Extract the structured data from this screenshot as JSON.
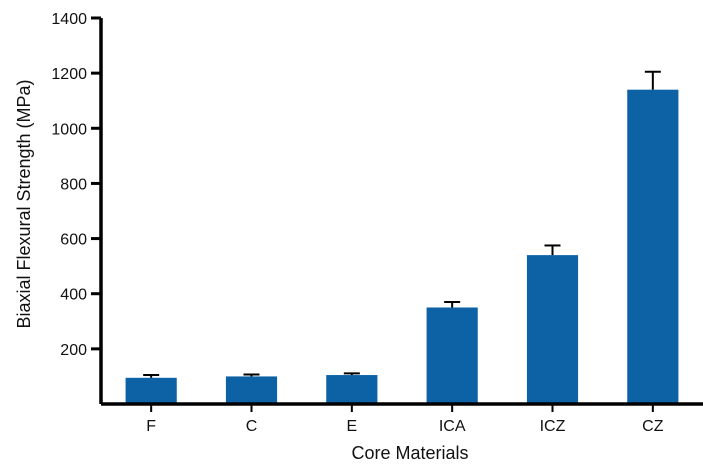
{
  "chart_data": {
    "type": "bar",
    "xlabel": "Core Materials",
    "ylabel": "Biaxial Flexural Strength (MPa)",
    "categories": [
      "F",
      "C",
      "E",
      "ICA",
      "ICZ",
      "CZ"
    ],
    "values": [
      95,
      100,
      105,
      350,
      540,
      1140
    ],
    "error_plus": [
      10,
      7,
      6,
      20,
      35,
      65
    ],
    "ylim": [
      0,
      1400
    ],
    "yticks": [
      200,
      400,
      600,
      800,
      1000,
      1200,
      1400
    ],
    "grid": false,
    "legend": "none",
    "error_bars": true,
    "colors": {
      "bar": "#0d62a6",
      "axis": "#000000",
      "text": "#111111",
      "background": "#ffffff"
    }
  }
}
